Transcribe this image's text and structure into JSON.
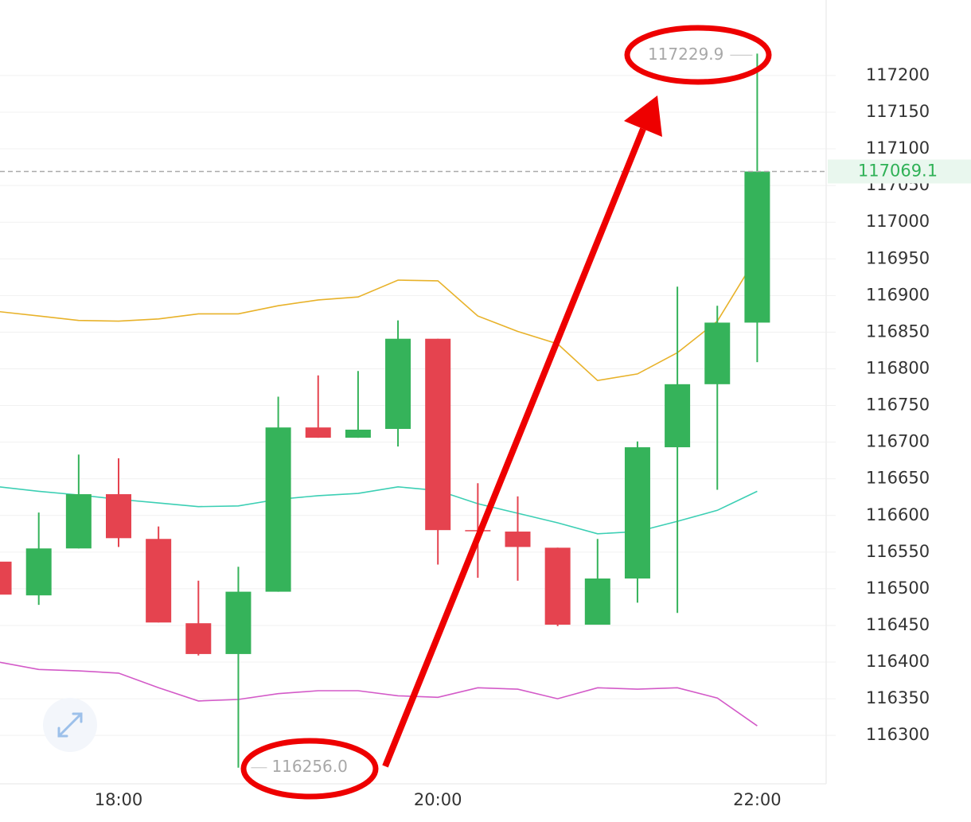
{
  "chart_data": {
    "type": "candlestick",
    "categories": [
      null,
      null,
      null,
      "18:00",
      null,
      null,
      null,
      null,
      null,
      null,
      null,
      "20:00",
      null,
      null,
      null,
      null,
      null,
      null,
      null,
      "22:00"
    ],
    "open": [
      116537,
      116491,
      116555,
      116629,
      116568,
      116453,
      116411,
      116496,
      116720,
      116706,
      116718,
      116841,
      116580,
      116578,
      116556,
      116451,
      116514,
      116693,
      116779,
      116863
    ],
    "high": [
      116545,
      116604,
      116683,
      116678,
      116585,
      116511,
      116530,
      116762,
      116791,
      116797,
      116866,
      116841,
      116644,
      116626,
      116556,
      116568,
      116701,
      116912,
      116886,
      117229.9
    ],
    "low": [
      116485,
      116478,
      116555,
      116557,
      116454,
      116409,
      116256,
      116496,
      116706,
      116706,
      116694,
      116533,
      116515,
      116511,
      116449,
      116451,
      116481,
      116467,
      116635,
      116809
    ],
    "close": [
      116492,
      116555,
      116629,
      116569,
      116454,
      116411,
      116496,
      116720,
      116706,
      116717,
      116841,
      116580,
      116579,
      116557,
      116451,
      116514,
      116693,
      116779,
      116863,
      117069.1
    ],
    "up_color": "#35b35a",
    "down_color": "#e5434f",
    "lines": [
      {
        "color": "#e8b22a",
        "values": [
          116878,
          116872,
          116866,
          116865,
          116868,
          116875,
          116875,
          116886,
          116894,
          116898,
          116921,
          116920,
          116872,
          116851,
          116834,
          116784,
          116793,
          116822,
          116865,
          116954
        ]
      },
      {
        "color": "#3ccfb4",
        "values": [
          116639,
          116633,
          116628,
          116622,
          116617,
          116612,
          116613,
          116622,
          116627,
          116630,
          116639,
          116634,
          116616,
          116603,
          116590,
          116575,
          116578,
          116592,
          116607,
          116633
        ]
      },
      {
        "color": "#d35ac8",
        "values": [
          116400,
          116390,
          116388,
          116385,
          116365,
          116347,
          116349,
          116357,
          116361,
          116361,
          116354,
          116352,
          116365,
          116363,
          116350,
          116365,
          116363,
          116365,
          116351,
          116313
        ]
      }
    ],
    "ylim": [
      116234,
      117303
    ],
    "yticks": [
      116300,
      116350,
      116400,
      116450,
      116500,
      116550,
      116600,
      116650,
      116700,
      116750,
      116800,
      116850,
      116900,
      116950,
      117000,
      117050,
      117100,
      117150,
      117200
    ],
    "grid": true,
    "last_price": 117069.1,
    "annotations": [
      {
        "label": "117229.9",
        "index": 19
      },
      {
        "label": "116256.0",
        "index": 6
      }
    ]
  }
}
